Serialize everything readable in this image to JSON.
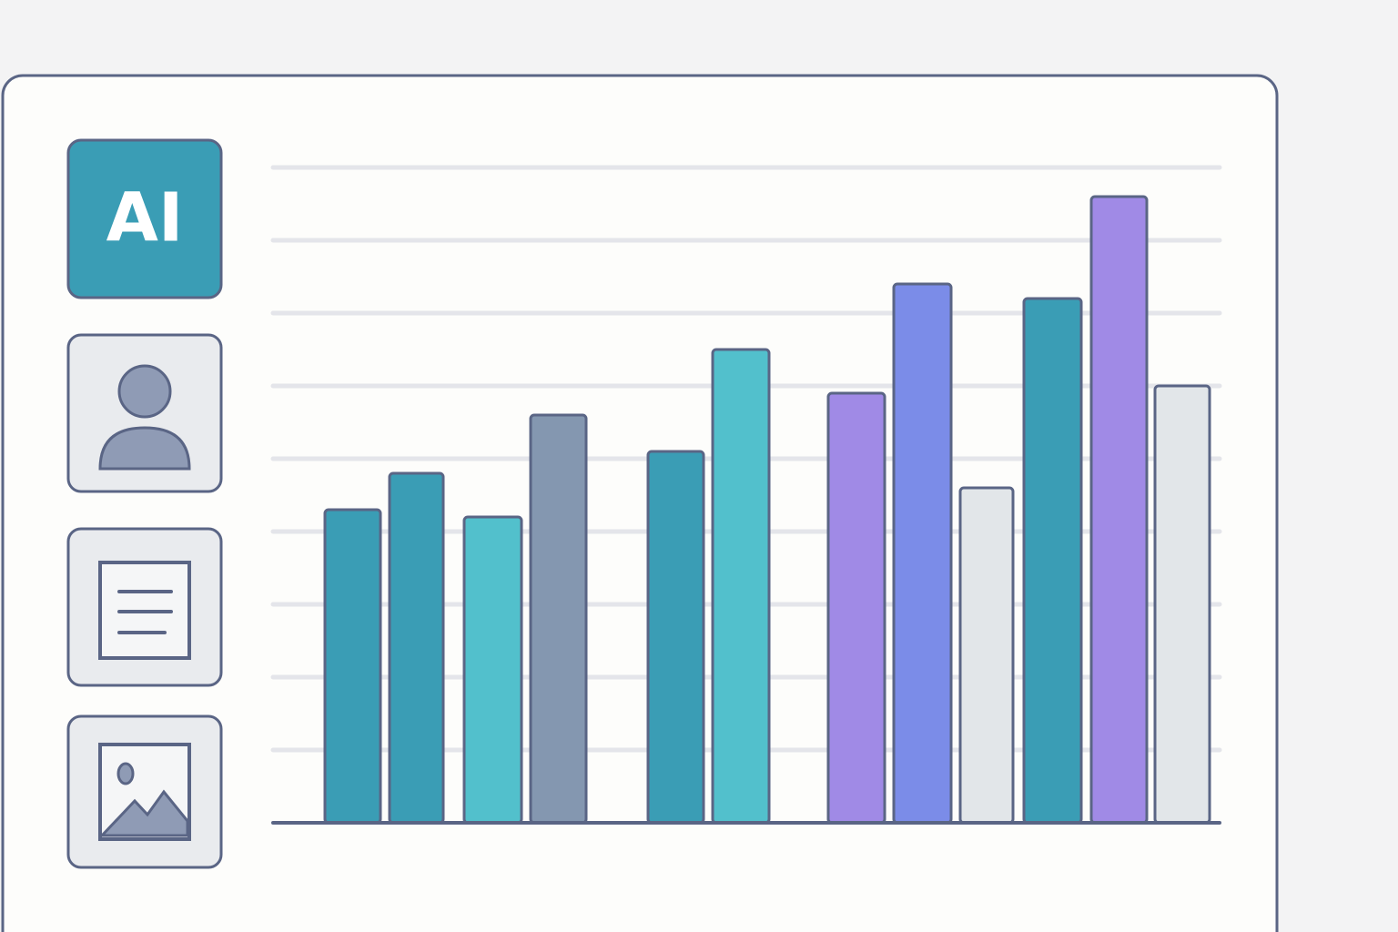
{
  "sidebar": {
    "logo": "AI"
  },
  "chart_data": {
    "type": "bar",
    "values": [
      4.3,
      4.8,
      4.2,
      5.6,
      5.1,
      6.5,
      5.9,
      7.4,
      4.6,
      7.2,
      8.6,
      6.0
    ],
    "colors": [
      "#3a9db5",
      "#3a9db5",
      "#52c0cc",
      "#8497b0",
      "#3a9db5",
      "#52c0cc",
      "#a08ae6",
      "#7b8ce8",
      "#e2e6e9",
      "#3a9db5",
      "#a08ae6",
      "#e2e6e9"
    ],
    "ylim": [
      0,
      9
    ],
    "yticks": [
      1,
      2,
      3,
      4,
      5,
      6,
      7,
      8,
      9
    ],
    "grid": true
  }
}
